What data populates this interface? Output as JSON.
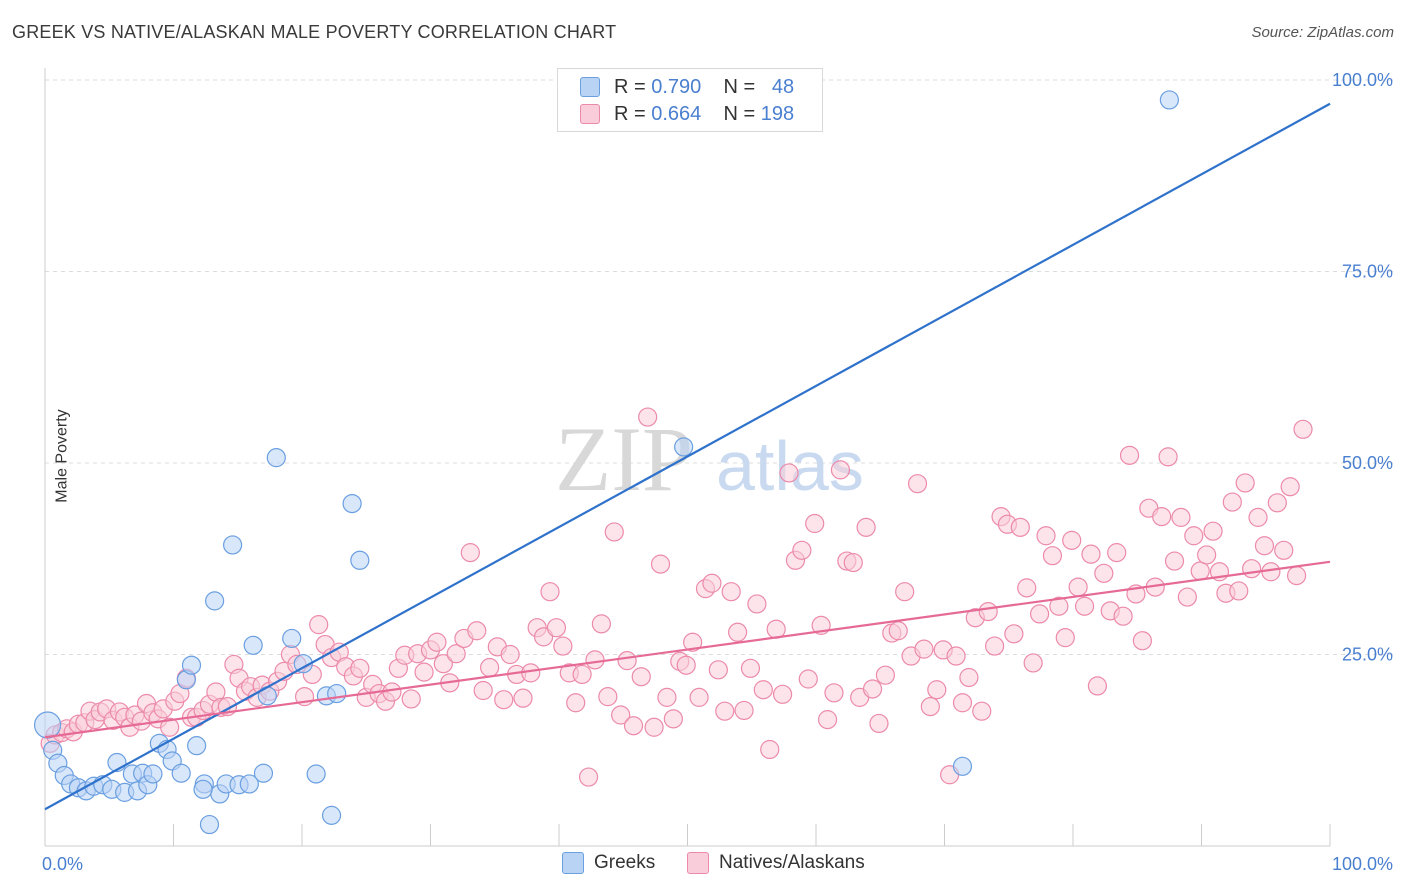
{
  "title": "GREEK VS NATIVE/ALASKAN MALE POVERTY CORRELATION CHART",
  "source": "Source: ZipAtlas.com",
  "watermark": {
    "zip": "ZIP",
    "atlas": "atlas"
  },
  "legend": {
    "r_label": "R =",
    "n_label": "N =",
    "series": [
      {
        "name": "Greeks",
        "r": "0.790",
        "n": "48",
        "color": "#a8c8f0",
        "edge": "#6a9fe0"
      },
      {
        "name": "Natives/Alaskans",
        "r": "0.664",
        "n": "198",
        "color": "#f7bfd0",
        "edge": "#ec8aab"
      }
    ]
  },
  "chart_data": {
    "type": "scatter",
    "title": "GREEK VS NATIVE/ALASKAN MALE POVERTY CORRELATION CHART",
    "xlabel": "",
    "ylabel": "Male Poverty",
    "xlim": [
      0,
      100
    ],
    "ylim": [
      0,
      100
    ],
    "x_tick_labels": [
      {
        "value": 0,
        "label": "0.0%"
      },
      {
        "value": 100,
        "label": "100.0%"
      }
    ],
    "y_tick_labels": [
      {
        "value": 25,
        "label": "25.0%"
      },
      {
        "value": 50,
        "label": "50.0%"
      },
      {
        "value": 75,
        "label": "75.0%"
      },
      {
        "value": 100,
        "label": "100.0%"
      }
    ],
    "legend_position": "top-center",
    "grid": "horizontal dashed",
    "series": [
      {
        "name": "Greeks",
        "color": "#6a9fe0",
        "trendline": {
          "x": [
            0,
            100
          ],
          "y": [
            4.8,
            96.9
          ]
        },
        "points": [
          [
            0.2,
            15.8
          ],
          [
            0.6,
            12.5
          ],
          [
            1.0,
            10.8
          ],
          [
            1.5,
            9.2
          ],
          [
            2.0,
            8.1
          ],
          [
            2.6,
            7.6
          ],
          [
            3.2,
            7.2
          ],
          [
            3.8,
            7.8
          ],
          [
            4.5,
            8.0
          ],
          [
            5.2,
            7.4
          ],
          [
            5.6,
            10.9
          ],
          [
            6.2,
            7.0
          ],
          [
            6.8,
            9.4
          ],
          [
            7.2,
            7.2
          ],
          [
            7.6,
            9.5
          ],
          [
            8.0,
            8.0
          ],
          [
            8.4,
            9.4
          ],
          [
            8.9,
            13.4
          ],
          [
            9.5,
            12.6
          ],
          [
            9.9,
            11.1
          ],
          [
            10.6,
            9.5
          ],
          [
            11.0,
            21.7
          ],
          [
            11.4,
            23.6
          ],
          [
            11.8,
            13.1
          ],
          [
            12.4,
            8.1
          ],
          [
            12.8,
            2.8
          ],
          [
            13.2,
            32.0
          ],
          [
            13.6,
            6.8
          ],
          [
            14.1,
            8.1
          ],
          [
            14.6,
            39.3
          ],
          [
            15.1,
            8.0
          ],
          [
            15.9,
            8.1
          ],
          [
            16.2,
            26.2
          ],
          [
            17.0,
            9.5
          ],
          [
            17.3,
            19.6
          ],
          [
            18.0,
            50.7
          ],
          [
            19.2,
            27.1
          ],
          [
            20.1,
            23.8
          ],
          [
            21.1,
            9.4
          ],
          [
            21.9,
            19.6
          ],
          [
            22.3,
            4.0
          ],
          [
            22.7,
            19.9
          ],
          [
            23.9,
            44.7
          ],
          [
            24.5,
            37.3
          ],
          [
            49.7,
            52.1
          ],
          [
            87.5,
            97.4
          ],
          [
            71.4,
            10.4
          ],
          [
            12.3,
            7.4
          ]
        ]
      },
      {
        "name": "Natives/Alaskans",
        "color": "#ec8aab",
        "trendline": {
          "x": [
            0,
            100
          ],
          "y": [
            14.2,
            37.1
          ]
        },
        "points": [
          [
            0.4,
            13.4
          ],
          [
            0.8,
            14.5
          ],
          [
            1.3,
            14.8
          ],
          [
            1.7,
            15.3
          ],
          [
            2.2,
            14.9
          ],
          [
            2.6,
            15.9
          ],
          [
            3.1,
            16.1
          ],
          [
            3.5,
            17.6
          ],
          [
            3.9,
            16.5
          ],
          [
            4.3,
            17.5
          ],
          [
            4.8,
            17.9
          ],
          [
            5.3,
            16.4
          ],
          [
            5.8,
            17.5
          ],
          [
            6.2,
            16.8
          ],
          [
            6.6,
            15.5
          ],
          [
            7.0,
            17.1
          ],
          [
            7.5,
            16.3
          ],
          [
            7.9,
            18.6
          ],
          [
            8.4,
            17.4
          ],
          [
            8.8,
            16.6
          ],
          [
            9.2,
            17.9
          ],
          [
            9.7,
            15.5
          ],
          [
            10.1,
            18.9
          ],
          [
            10.5,
            19.9
          ],
          [
            11.0,
            21.9
          ],
          [
            11.4,
            16.8
          ],
          [
            11.8,
            16.8
          ],
          [
            12.3,
            17.7
          ],
          [
            12.8,
            18.5
          ],
          [
            13.3,
            20.1
          ],
          [
            13.7,
            18.1
          ],
          [
            14.2,
            18.2
          ],
          [
            14.7,
            23.7
          ],
          [
            15.1,
            21.9
          ],
          [
            15.6,
            20.2
          ],
          [
            16.0,
            20.8
          ],
          [
            16.5,
            19.4
          ],
          [
            16.9,
            21.0
          ],
          [
            17.5,
            20.2
          ],
          [
            18.1,
            21.5
          ],
          [
            18.6,
            22.8
          ],
          [
            19.1,
            25.0
          ],
          [
            19.6,
            23.7
          ],
          [
            20.2,
            19.5
          ],
          [
            20.8,
            22.4
          ],
          [
            21.3,
            28.9
          ],
          [
            21.8,
            26.3
          ],
          [
            22.3,
            24.6
          ],
          [
            22.9,
            25.3
          ],
          [
            23.4,
            23.4
          ],
          [
            24.0,
            22.2
          ],
          [
            24.5,
            23.2
          ],
          [
            25.0,
            19.4
          ],
          [
            25.5,
            21.1
          ],
          [
            26.0,
            19.9
          ],
          [
            26.5,
            18.9
          ],
          [
            27.0,
            20.1
          ],
          [
            27.5,
            23.2
          ],
          [
            28.0,
            24.9
          ],
          [
            28.5,
            19.2
          ],
          [
            29.0,
            25.1
          ],
          [
            29.5,
            22.7
          ],
          [
            30.0,
            25.6
          ],
          [
            30.5,
            26.6
          ],
          [
            31.0,
            23.8
          ],
          [
            31.5,
            21.3
          ],
          [
            32.0,
            25.1
          ],
          [
            32.6,
            27.1
          ],
          [
            33.1,
            38.3
          ],
          [
            33.6,
            28.1
          ],
          [
            34.1,
            20.3
          ],
          [
            34.6,
            23.3
          ],
          [
            35.2,
            26.0
          ],
          [
            35.7,
            19.1
          ],
          [
            36.2,
            25.0
          ],
          [
            36.7,
            22.4
          ],
          [
            37.2,
            19.3
          ],
          [
            37.8,
            22.6
          ],
          [
            38.3,
            28.5
          ],
          [
            38.8,
            27.3
          ],
          [
            39.3,
            33.2
          ],
          [
            39.8,
            28.5
          ],
          [
            40.3,
            26.1
          ],
          [
            40.8,
            22.6
          ],
          [
            41.3,
            18.7
          ],
          [
            41.8,
            22.4
          ],
          [
            42.3,
            9.0
          ],
          [
            42.8,
            24.3
          ],
          [
            43.3,
            29.0
          ],
          [
            43.8,
            19.5
          ],
          [
            44.3,
            41.0
          ],
          [
            44.8,
            17.1
          ],
          [
            45.3,
            24.2
          ],
          [
            45.8,
            15.7
          ],
          [
            46.4,
            22.1
          ],
          [
            46.9,
            56.0
          ],
          [
            47.4,
            15.5
          ],
          [
            47.9,
            36.8
          ],
          [
            48.4,
            19.4
          ],
          [
            48.9,
            16.6
          ],
          [
            49.4,
            24.1
          ],
          [
            49.9,
            23.6
          ],
          [
            50.4,
            26.6
          ],
          [
            50.9,
            19.4
          ],
          [
            51.4,
            33.6
          ],
          [
            51.9,
            34.3
          ],
          [
            52.4,
            23.0
          ],
          [
            52.9,
            17.6
          ],
          [
            53.4,
            33.2
          ],
          [
            53.9,
            27.9
          ],
          [
            54.4,
            17.7
          ],
          [
            54.9,
            23.2
          ],
          [
            55.4,
            31.6
          ],
          [
            55.9,
            20.4
          ],
          [
            56.4,
            12.6
          ],
          [
            56.9,
            28.3
          ],
          [
            57.4,
            19.8
          ],
          [
            57.9,
            48.7
          ],
          [
            58.4,
            37.3
          ],
          [
            58.9,
            38.6
          ],
          [
            59.4,
            21.8
          ],
          [
            59.9,
            42.1
          ],
          [
            60.4,
            28.8
          ],
          [
            60.9,
            16.5
          ],
          [
            61.4,
            20.0
          ],
          [
            61.9,
            49.1
          ],
          [
            62.4,
            37.2
          ],
          [
            62.9,
            37.0
          ],
          [
            63.4,
            19.4
          ],
          [
            63.9,
            41.6
          ],
          [
            64.4,
            20.5
          ],
          [
            64.9,
            16.0
          ],
          [
            65.4,
            22.3
          ],
          [
            65.9,
            27.8
          ],
          [
            66.4,
            28.1
          ],
          [
            66.9,
            33.2
          ],
          [
            67.4,
            24.8
          ],
          [
            67.9,
            47.3
          ],
          [
            68.4,
            25.7
          ],
          [
            68.9,
            18.2
          ],
          [
            69.4,
            20.4
          ],
          [
            69.9,
            25.6
          ],
          [
            70.4,
            9.3
          ],
          [
            70.9,
            24.8
          ],
          [
            71.4,
            18.7
          ],
          [
            71.9,
            22.0
          ],
          [
            72.4,
            29.8
          ],
          [
            72.9,
            17.6
          ],
          [
            73.4,
            30.6
          ],
          [
            73.9,
            26.1
          ],
          [
            74.4,
            43.0
          ],
          [
            74.9,
            42.0
          ],
          [
            75.4,
            27.7
          ],
          [
            75.9,
            41.6
          ],
          [
            76.4,
            33.7
          ],
          [
            76.9,
            23.9
          ],
          [
            77.4,
            30.3
          ],
          [
            77.9,
            40.5
          ],
          [
            78.4,
            37.9
          ],
          [
            78.9,
            31.3
          ],
          [
            79.4,
            27.2
          ],
          [
            79.9,
            39.9
          ],
          [
            80.4,
            33.8
          ],
          [
            80.9,
            31.3
          ],
          [
            81.4,
            38.1
          ],
          [
            81.9,
            20.9
          ],
          [
            82.4,
            35.6
          ],
          [
            82.9,
            30.7
          ],
          [
            83.4,
            38.3
          ],
          [
            83.9,
            30.0
          ],
          [
            84.4,
            51.0
          ],
          [
            84.9,
            32.9
          ],
          [
            85.4,
            26.8
          ],
          [
            85.9,
            44.1
          ],
          [
            86.4,
            33.8
          ],
          [
            86.9,
            43.0
          ],
          [
            87.4,
            50.8
          ],
          [
            87.9,
            37.2
          ],
          [
            88.4,
            42.9
          ],
          [
            88.9,
            32.5
          ],
          [
            89.4,
            40.5
          ],
          [
            89.9,
            35.9
          ],
          [
            90.4,
            38.0
          ],
          [
            90.9,
            41.1
          ],
          [
            91.4,
            35.8
          ],
          [
            91.9,
            33.0
          ],
          [
            92.4,
            44.9
          ],
          [
            92.9,
            33.3
          ],
          [
            93.4,
            47.4
          ],
          [
            93.9,
            36.2
          ],
          [
            94.4,
            42.9
          ],
          [
            94.9,
            39.2
          ],
          [
            95.4,
            35.8
          ],
          [
            95.9,
            44.8
          ],
          [
            96.4,
            38.6
          ],
          [
            96.9,
            46.9
          ],
          [
            97.4,
            35.3
          ],
          [
            97.9,
            54.4
          ]
        ]
      }
    ]
  }
}
